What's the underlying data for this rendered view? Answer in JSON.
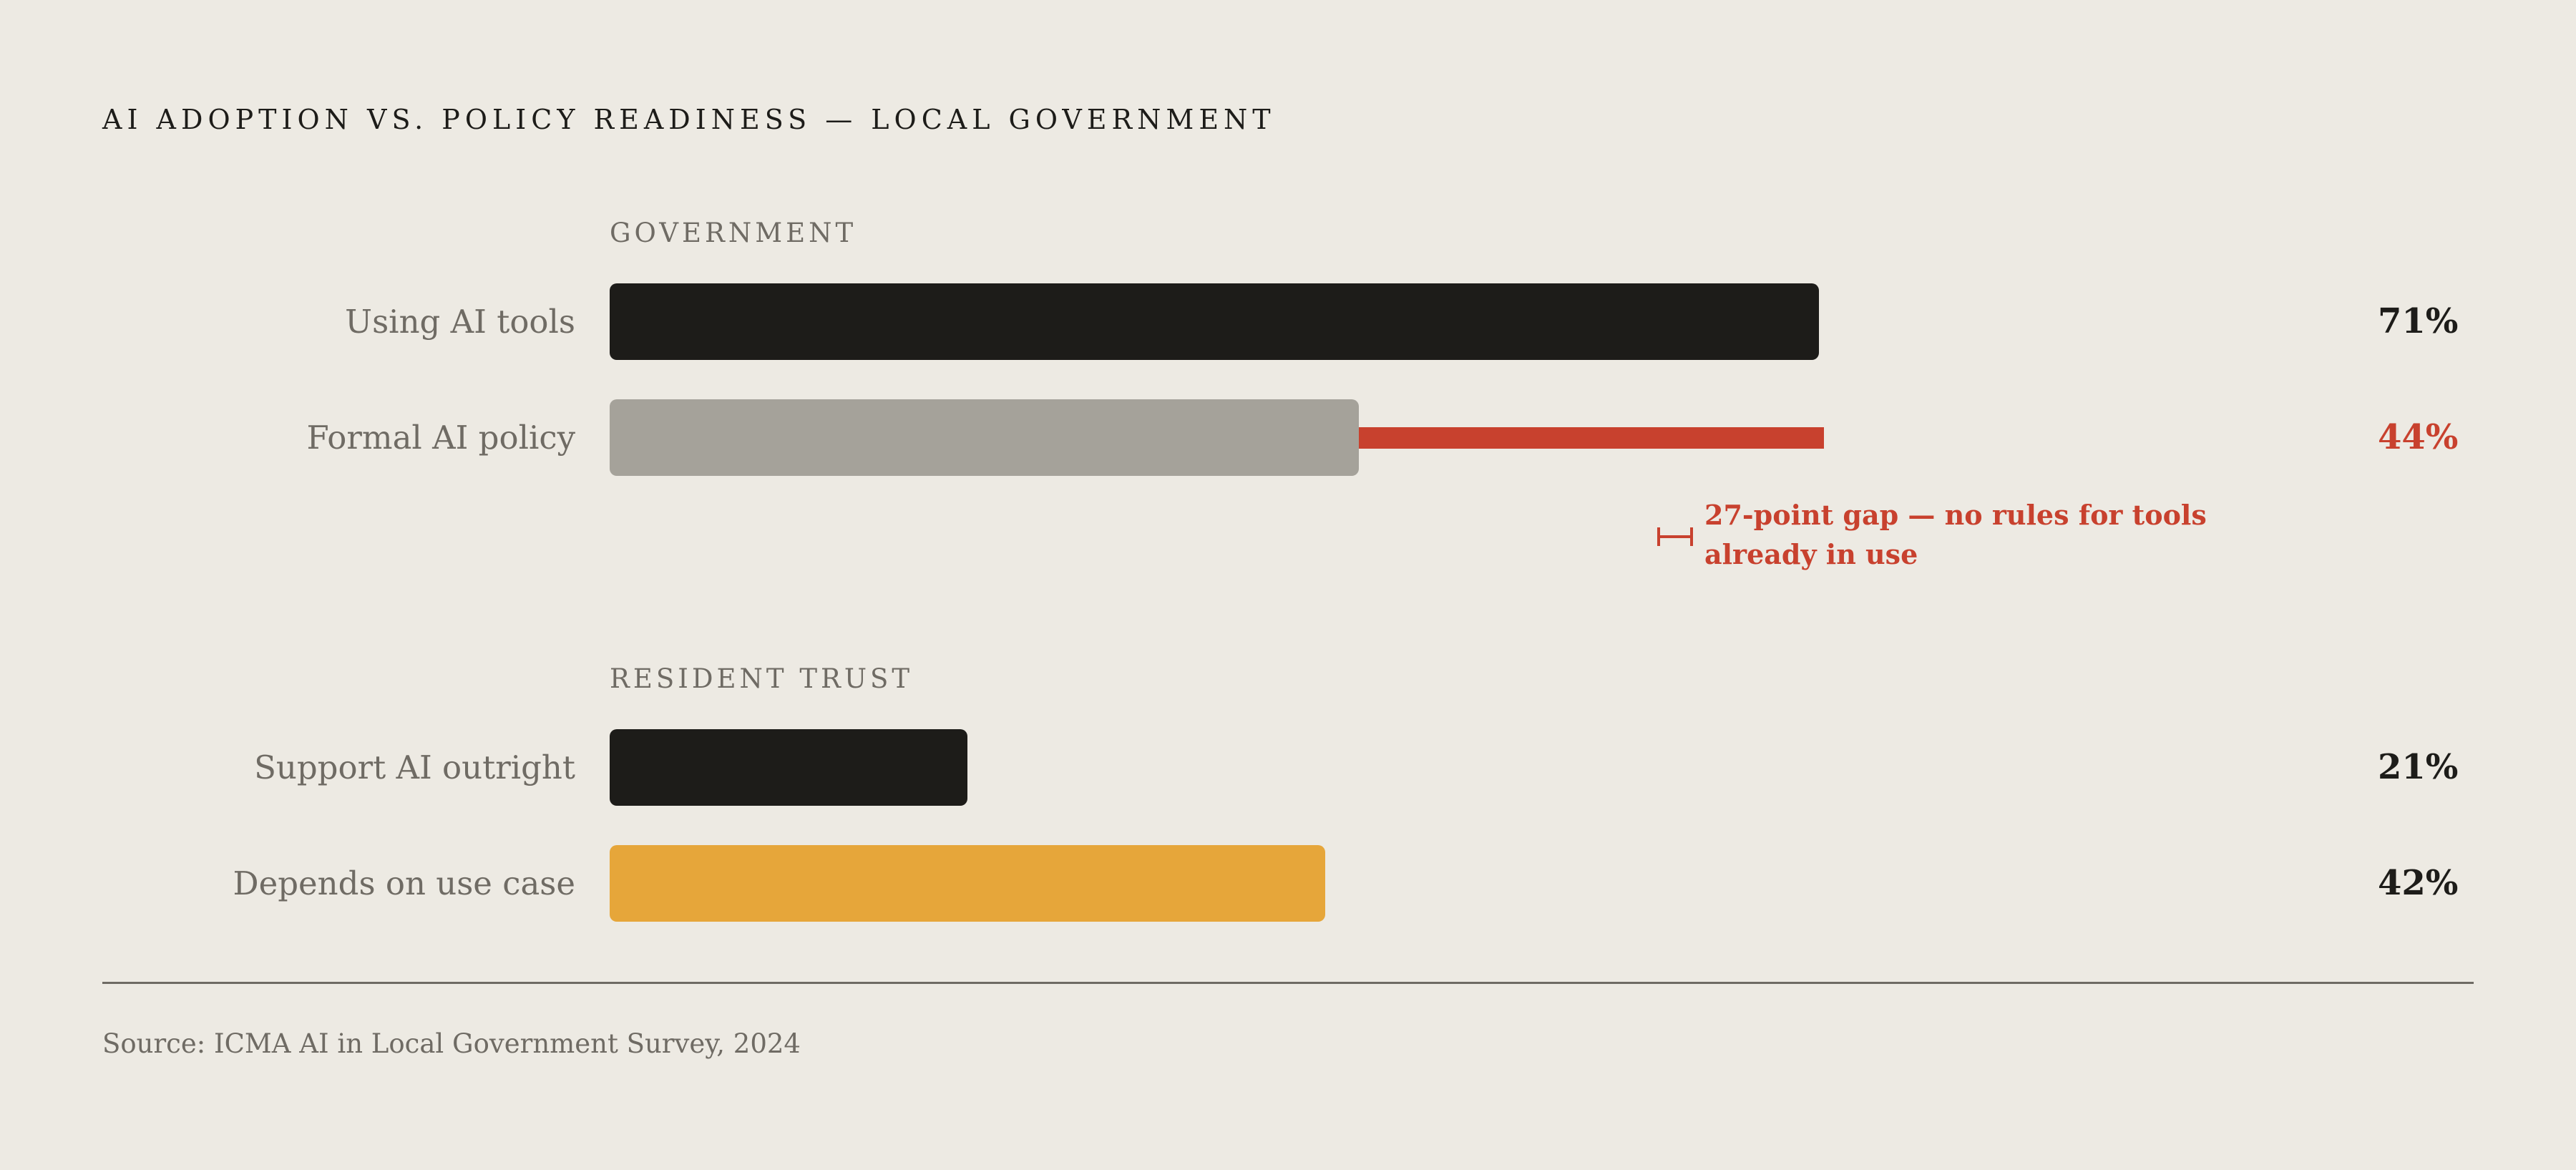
{
  "chart_data": {
    "type": "bar",
    "orientation": "horizontal",
    "title": "AI ADOPTION VS. POLICY READINESS — LOCAL GOVERNMENT",
    "xlim": [
      0,
      100
    ],
    "unit": "%",
    "groups": [
      {
        "name": "GOVERNMENT",
        "items": [
          {
            "label": "Using AI tools",
            "value": 71,
            "display": "71%",
            "color": "#1d1c19",
            "value_color": "#1d1c19"
          },
          {
            "label": "Formal AI policy",
            "value": 44,
            "display": "44%",
            "color": "#a5a29a",
            "value_color": "#c8412e"
          }
        ]
      },
      {
        "name": "RESIDENT TRUST",
        "items": [
          {
            "label": "Support AI outright",
            "value": 21,
            "display": "21%",
            "color": "#1d1c19",
            "value_color": "#1d1c19"
          },
          {
            "label": "Depends on use case",
            "value": 42,
            "display": "42%",
            "color": "#e6a63a",
            "value_color": "#1d1c19"
          }
        ]
      }
    ],
    "gap": {
      "from": 44,
      "to": 71,
      "points": 27,
      "color": "#c8412e",
      "annotation": "27-point gap — no rules for tools already in use"
    },
    "source": "Source: ICMA AI in Local Government Survey, 2024"
  }
}
